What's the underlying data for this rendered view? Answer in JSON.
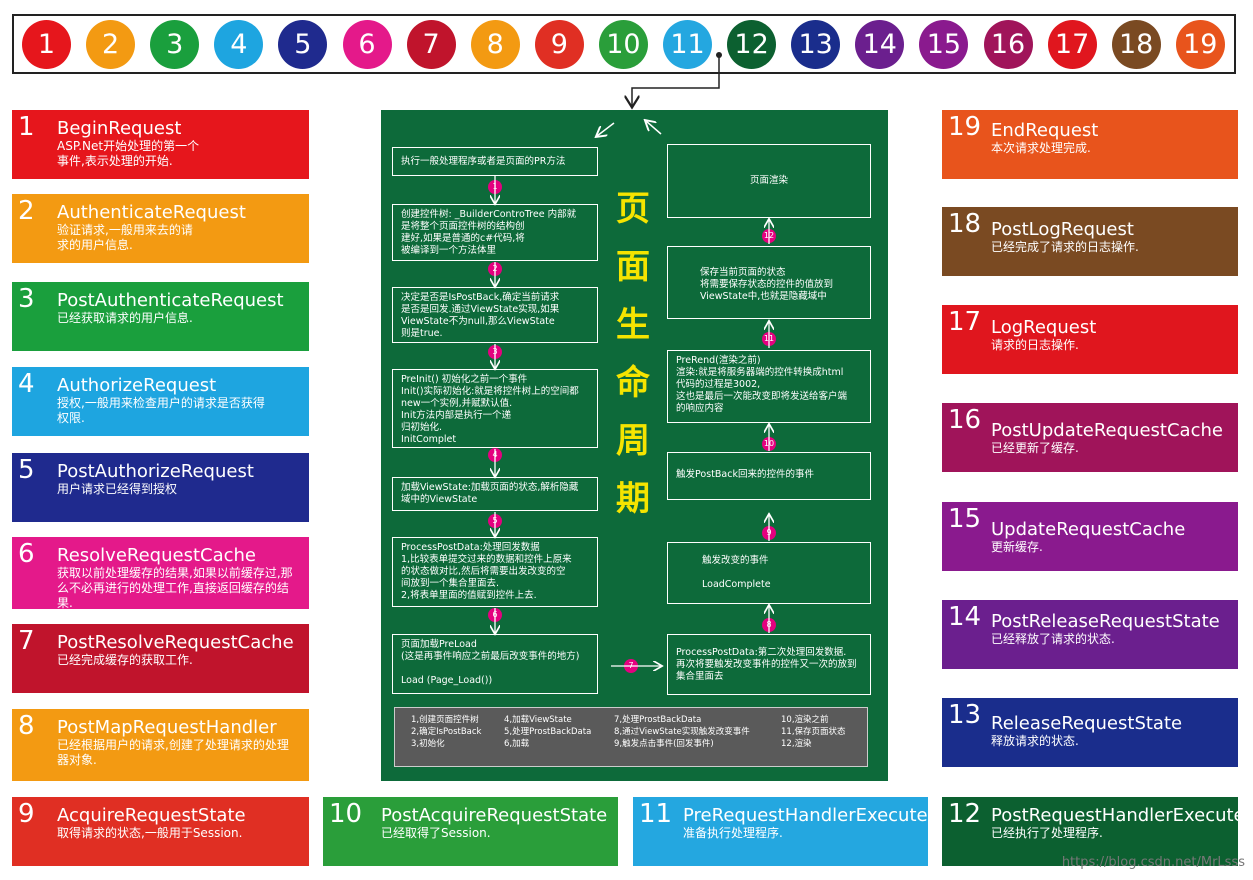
{
  "circles": [
    {
      "n": "1",
      "color": "#e6161c"
    },
    {
      "n": "2",
      "color": "#f39a12"
    },
    {
      "n": "3",
      "color": "#1a9f3d"
    },
    {
      "n": "4",
      "color": "#1ea5e0"
    },
    {
      "n": "5",
      "color": "#1f2a8e"
    },
    {
      "n": "6",
      "color": "#e4198a"
    },
    {
      "n": "7",
      "color": "#c0142c"
    },
    {
      "n": "8",
      "color": "#f39a12"
    },
    {
      "n": "9",
      "color": "#e02f23"
    },
    {
      "n": "10",
      "color": "#2a9e3a"
    },
    {
      "n": "11",
      "color": "#24a7e0"
    },
    {
      "n": "12",
      "color": "#0c6030"
    },
    {
      "n": "13",
      "color": "#1a2d8c"
    },
    {
      "n": "14",
      "color": "#6b1f8e"
    },
    {
      "n": "15",
      "color": "#8a1a8e"
    },
    {
      "n": "16",
      "color": "#a0145a"
    },
    {
      "n": "17",
      "color": "#e0161e"
    },
    {
      "n": "18",
      "color": "#7a4a22"
    },
    {
      "n": "19",
      "color": "#e8541c"
    }
  ],
  "events": {
    "e1": {
      "num": "1",
      "title": "BeginRequest",
      "desc": "ASP.Net开始处理的第一个事件,表示处理的开始.",
      "color": "#e6161c"
    },
    "e2": {
      "num": "2",
      "title": "AuthenticateRequest",
      "desc": "验证请求,一般用来去的请求的用户信息.",
      "color": "#f39a12"
    },
    "e3": {
      "num": "3",
      "title": "PostAuthenticateRequest",
      "desc": "已经获取请求的用户信息.",
      "color": "#1a9f3d"
    },
    "e4": {
      "num": "4",
      "title": "AuthorizeRequest",
      "desc": "授权,一般用来检查用户的请求是否获得权限.",
      "color": "#1ea5e0"
    },
    "e5": {
      "num": "5",
      "title": "PostAuthorizeRequest",
      "desc": "用户请求已经得到授权",
      "color": "#1f2a8e"
    },
    "e6": {
      "num": "6",
      "title": "ResolveRequestCache",
      "desc": "获取以前处理缓存的结果,如果以前缓存过,那么不必再进行的处理工作,直接返回缓存的结果.",
      "color": "#e4198a"
    },
    "e7": {
      "num": "7",
      "title": "PostResolveRequestCache",
      "desc": "已经完成缓存的获取工作.",
      "color": "#c0142c"
    },
    "e8": {
      "num": "8",
      "title": "PostMapRequestHandler",
      "desc": "已经根据用户的请求,创建了处理请求的处理器对象.",
      "color": "#f39a12"
    },
    "e9": {
      "num": "9",
      "title": "AcquireRequestState",
      "desc": "取得请求的状态,一般用于Session.",
      "color": "#e02f23"
    },
    "e10": {
      "num": "10",
      "title": "PostAcquireRequestState",
      "desc": "已经取得了Session.",
      "color": "#2a9e3a"
    },
    "e11": {
      "num": "11",
      "title": "PreRequestHandlerExecute",
      "desc": "准备执行处理程序.",
      "color": "#24a7e0"
    },
    "e12": {
      "num": "12",
      "title": "PostRequestHandlerExecute",
      "desc": "已经执行了处理程序.",
      "color": "#0c6030"
    },
    "e13": {
      "num": "13",
      "title": "ReleaseRequestState",
      "desc": "释放请求的状态.",
      "color": "#1a2d8c"
    },
    "e14": {
      "num": "14",
      "title": "PostReleaseRequestState",
      "desc": "已经释放了请求的状态.",
      "color": "#6b1f8e"
    },
    "e15": {
      "num": "15",
      "title": "UpdateRequestCache",
      "desc": "更新缓存.",
      "color": "#8a1a8e"
    },
    "e16": {
      "num": "16",
      "title": "PostUpdateRequestCache",
      "desc": "已经更新了缓存.",
      "color": "#a0145a"
    },
    "e17": {
      "num": "17",
      "title": "LogRequest",
      "desc": "请求的日志操作.",
      "color": "#e0161e"
    },
    "e18": {
      "num": "18",
      "title": "PostLogRequest",
      "desc": "已经完成了请求的日志操作.",
      "color": "#7a4a22"
    },
    "e19": {
      "num": "19",
      "title": "EndRequest",
      "desc": "本次请求处理完成.",
      "color": "#e8541c"
    }
  },
  "panel": {
    "title_chars": [
      "页",
      "面",
      "生",
      "命",
      "周",
      "期"
    ],
    "left_boxes": {
      "b0": "执行一般处理程序或者是页面的PR方法",
      "b1": "创建控件树: _BuilderControTree 内部就\n是将整个页面控件树的结构创\n建好,如果是普通的c#代码,将\n被编译到一个方法体里",
      "b2": "决定是否是IsPostBack,确定当前请求\n是否是回发.通过ViewState实现,如果\nViewState不为null,那么ViewState\n则是true.",
      "b3": "PreInit() 初始化之前一个事件\nInit()实际初始化:就是将控件树上的空间都\nnew一个实例,并赋默认值.\nInit方法内部是执行一个递\n归初始化.\nInitComplet",
      "b4": "加载ViewState:加载页面的状态,解析隐藏\n域中的ViewState",
      "b5": "ProcessPostData:处理回发数据\n1,比较表单提交过来的数据和控件上原来\n的状态做对比,然后将需要出发改变的空\n间放到一个集合里面去.\n2,将表单里面的值赋到控件上去.",
      "b6": "页面加载PreLoad\n(这是再事件响应之前最后改变事件的地方)\n\nLoad   (Page_Load())"
    },
    "right_boxes": {
      "r0": "页面渲染",
      "r1": "保存当前页面的状态\n将需要保存状态的控件的值放到\nViewState中,也就是隐藏域中",
      "r2": "PreRend(渲染之前)\n渲染:就是将服务器端的控件转换成html\n代码的过程是3002,\n这也是最后一次能改变即将发送给客户端\n的响应内容",
      "r3": "触发PostBack回来的控件的事件",
      "r4": "触发改变的事件\n\nLoadComplete",
      "r5": "ProcessPostData:第二次处理回发数据.\n再次将要触发改变事件的控件又一次的放到\n集合里面去"
    },
    "steps": [
      "1",
      "2",
      "3",
      "4",
      "5",
      "6",
      "7",
      "8",
      "9",
      "10",
      "11",
      "12"
    ],
    "legend": {
      "c1": [
        "1,创建页面控件树",
        "2,确定IsPostBack",
        "3,初始化"
      ],
      "c2": [
        "4,加载ViewState",
        "5,处理ProstBackData",
        "6,加载"
      ],
      "c3": [
        "7,处理ProstBackData",
        "8,通过ViewState实现触发改变事件",
        "9,触发点击事件(回发事件)"
      ],
      "c4": [
        "10,渲染之前",
        "11,保存页面状态",
        "12,渲染"
      ]
    }
  },
  "watermark": "https://blog.csdn.net/MrLsss",
  "colors": {
    "panel": "#0d6a3a",
    "title": "#f5e400",
    "step": "#e4007f"
  }
}
